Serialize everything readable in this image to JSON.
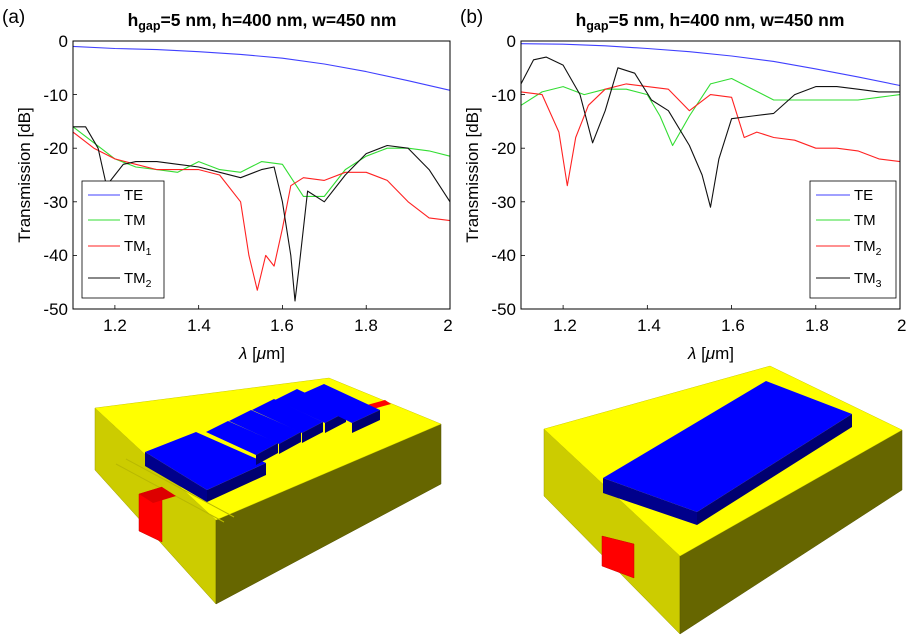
{
  "panels": [
    {
      "tag": "(a)",
      "title": {
        "h": "h",
        "sub": "gap",
        "rest": "=5 nm, h=400 nm, w=450 nm"
      },
      "xlabel": {
        "symbol": "λ",
        "pre": " [",
        "mu": "μ",
        "post": "m]"
      },
      "ylabel": "Transmission [dB]",
      "xticks": [
        "1.2",
        "1.4",
        "1.6",
        "1.8",
        "2"
      ],
      "yticks": [
        "0",
        "-10",
        "-20",
        "-30",
        "-40",
        "-50"
      ],
      "legend": [
        {
          "base": "TE",
          "sub": ""
        },
        {
          "base": "TM",
          "sub": ""
        },
        {
          "base": "TM",
          "sub": "1"
        },
        {
          "base": "TM",
          "sub": "2"
        }
      ]
    },
    {
      "tag": "(b)",
      "title": {
        "h": "h",
        "sub": "gap",
        "rest": "=5 nm, h=400 nm, w=450 nm"
      },
      "xlabel": {
        "symbol": "λ",
        "pre": " [",
        "mu": "μ",
        "post": "m]"
      },
      "ylabel": "Transmission [dB]",
      "xticks": [
        "1.2",
        "1.4",
        "1.6",
        "1.8",
        "2"
      ],
      "yticks": [
        "0",
        "-10",
        "-20",
        "-30",
        "-40",
        "-50"
      ],
      "legend": [
        {
          "base": "TE",
          "sub": ""
        },
        {
          "base": "TM",
          "sub": ""
        },
        {
          "base": "TM",
          "sub": "2"
        },
        {
          "base": "TM",
          "sub": "3"
        }
      ]
    }
  ],
  "colors": {
    "te": "#4040ff",
    "tm": "#33dd33",
    "tm_mode_a": "#ff2222",
    "tm_mode_b": "#111111",
    "device_yellow": "#ffff00",
    "device_blue": "#0000ff",
    "device_red": "#ff0000"
  },
  "chart_data": [
    {
      "type": "line",
      "xlim": [
        1.1,
        2.0
      ],
      "ylim": [
        -50,
        0
      ],
      "grid": false,
      "legend_position": "bottom-left",
      "series": [
        {
          "name": "TE",
          "color": "#4040ff",
          "x": [
            1.1,
            1.2,
            1.3,
            1.4,
            1.5,
            1.6,
            1.7,
            1.8,
            1.9,
            2.0
          ],
          "y": [
            -1.0,
            -1.4,
            -1.6,
            -2.0,
            -2.5,
            -3.2,
            -4.3,
            -5.7,
            -7.4,
            -9.2
          ]
        },
        {
          "name": "TM",
          "color": "#33dd33",
          "x": [
            1.1,
            1.15,
            1.2,
            1.25,
            1.3,
            1.35,
            1.4,
            1.45,
            1.5,
            1.55,
            1.6,
            1.65,
            1.7,
            1.75,
            1.8,
            1.85,
            1.9,
            1.95,
            2.0
          ],
          "y": [
            -16,
            -19,
            -22,
            -23.5,
            -24,
            -24.5,
            -22.5,
            -24,
            -24.5,
            -22.5,
            -23,
            -29,
            -29,
            -24,
            -21.5,
            -20,
            -20,
            -20.5,
            -21.5
          ]
        },
        {
          "name": "TM1",
          "color": "#ff2222",
          "x": [
            1.1,
            1.15,
            1.2,
            1.25,
            1.3,
            1.35,
            1.4,
            1.45,
            1.5,
            1.52,
            1.54,
            1.56,
            1.58,
            1.6,
            1.62,
            1.65,
            1.7,
            1.75,
            1.8,
            1.85,
            1.9,
            1.95,
            2.0
          ],
          "y": [
            -17,
            -20,
            -22,
            -23,
            -24,
            -24,
            -24,
            -25,
            -30,
            -40,
            -46.5,
            -40,
            -42,
            -35,
            -27,
            -25.5,
            -26,
            -24.5,
            -24.5,
            -26,
            -30,
            -33,
            -33.5
          ]
        },
        {
          "name": "TM2",
          "color": "#111111",
          "x": [
            1.1,
            1.13,
            1.16,
            1.18,
            1.2,
            1.22,
            1.25,
            1.3,
            1.35,
            1.4,
            1.45,
            1.5,
            1.55,
            1.58,
            1.6,
            1.62,
            1.63,
            1.64,
            1.66,
            1.7,
            1.75,
            1.8,
            1.85,
            1.9,
            1.95,
            2.0
          ],
          "y": [
            -16,
            -16,
            -20,
            -27,
            -25,
            -23,
            -22.5,
            -22.5,
            -23,
            -23.5,
            -24.5,
            -25.5,
            -24,
            -23.5,
            -30,
            -40,
            -48.5,
            -42,
            -28,
            -30,
            -25,
            -21,
            -19.5,
            -20,
            -24,
            -30
          ]
        }
      ]
    },
    {
      "type": "line",
      "xlim": [
        1.1,
        2.0
      ],
      "ylim": [
        -50,
        0
      ],
      "grid": false,
      "legend_position": "bottom-right",
      "series": [
        {
          "name": "TE",
          "color": "#4040ff",
          "x": [
            1.1,
            1.2,
            1.3,
            1.4,
            1.5,
            1.6,
            1.7,
            1.8,
            1.9,
            2.0
          ],
          "y": [
            -0.5,
            -0.6,
            -0.9,
            -1.4,
            -2.0,
            -2.8,
            -3.8,
            -5.2,
            -6.7,
            -8.3
          ]
        },
        {
          "name": "TM",
          "color": "#33dd33",
          "x": [
            1.1,
            1.15,
            1.2,
            1.25,
            1.3,
            1.35,
            1.4,
            1.43,
            1.46,
            1.5,
            1.55,
            1.6,
            1.65,
            1.7,
            1.75,
            1.8,
            1.85,
            1.9,
            1.95,
            2.0
          ],
          "y": [
            -12,
            -9.5,
            -8.5,
            -10,
            -9,
            -9,
            -10,
            -14,
            -19.5,
            -14,
            -8,
            -7,
            -9,
            -11,
            -11,
            -11,
            -11,
            -11,
            -10.5,
            -10
          ]
        },
        {
          "name": "TM2",
          "color": "#ff2222",
          "x": [
            1.1,
            1.15,
            1.19,
            1.21,
            1.23,
            1.26,
            1.3,
            1.35,
            1.4,
            1.45,
            1.5,
            1.55,
            1.6,
            1.63,
            1.66,
            1.7,
            1.75,
            1.8,
            1.85,
            1.9,
            1.95,
            2.0
          ],
          "y": [
            -9.5,
            -10,
            -17,
            -27,
            -18,
            -12,
            -9,
            -8,
            -8.5,
            -9,
            -13,
            -10,
            -10.5,
            -18,
            -17,
            -18,
            -18.5,
            -20,
            -20,
            -20.5,
            -22,
            -22.5
          ]
        },
        {
          "name": "TM3",
          "color": "#111111",
          "x": [
            1.1,
            1.13,
            1.16,
            1.2,
            1.24,
            1.27,
            1.3,
            1.33,
            1.37,
            1.41,
            1.45,
            1.5,
            1.53,
            1.55,
            1.57,
            1.6,
            1.65,
            1.7,
            1.75,
            1.8,
            1.85,
            1.9,
            1.95,
            2.0
          ],
          "y": [
            -8,
            -3.5,
            -3,
            -4.5,
            -10,
            -19,
            -13,
            -5,
            -6,
            -11,
            -13,
            -19.5,
            -25,
            -31,
            -22,
            -14.5,
            -14,
            -13.5,
            -10,
            -8.5,
            -8.5,
            -9,
            -9.5,
            -9.5
          ]
        }
      ]
    }
  ]
}
